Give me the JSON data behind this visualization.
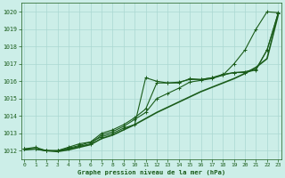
{
  "title": "Graphe pression niveau de la mer (hPa)",
  "hours": [
    0,
    1,
    2,
    3,
    4,
    5,
    6,
    7,
    8,
    9,
    10,
    11,
    12,
    13,
    14,
    15,
    16,
    17,
    18,
    19,
    20,
    21,
    22,
    23
  ],
  "series": [
    {
      "name": "line_top_curved",
      "values": [
        1012.1,
        1012.2,
        1012.0,
        1012.0,
        1012.2,
        1012.4,
        1012.5,
        1012.8,
        1013.0,
        1013.3,
        1013.5,
        1016.2,
        1016.0,
        1015.9,
        1015.9,
        1016.15,
        1016.1,
        1016.2,
        1016.35,
        1017.0,
        1017.8,
        1019.0,
        1020.0,
        1019.95
      ],
      "marker": true,
      "linewidth": 0.8
    },
    {
      "name": "line_mid1",
      "values": [
        1012.1,
        1012.1,
        1012.0,
        1012.0,
        1012.15,
        1012.3,
        1012.5,
        1013.0,
        1013.2,
        1013.5,
        1013.9,
        1014.4,
        1015.9,
        1015.9,
        1015.95,
        1016.1,
        1016.1,
        1016.2,
        1016.4,
        1016.5,
        1016.55,
        1016.7,
        1017.8,
        1019.9
      ],
      "marker": true,
      "linewidth": 0.8
    },
    {
      "name": "line_mid2",
      "values": [
        1012.1,
        1012.1,
        1012.0,
        1012.0,
        1012.1,
        1012.25,
        1012.4,
        1012.9,
        1013.1,
        1013.4,
        1013.8,
        1014.2,
        1015.0,
        1015.3,
        1015.6,
        1015.95,
        1016.05,
        1016.15,
        1016.35,
        1016.5,
        1016.5,
        1016.65,
        1017.8,
        1019.9
      ],
      "marker": true,
      "linewidth": 0.8
    },
    {
      "name": "line_smooth_low",
      "values": [
        1012.05,
        1012.1,
        1012.0,
        1011.95,
        1012.05,
        1012.2,
        1012.35,
        1012.7,
        1012.9,
        1013.2,
        1013.5,
        1013.85,
        1014.2,
        1014.5,
        1014.8,
        1015.1,
        1015.4,
        1015.65,
        1015.9,
        1016.15,
        1016.45,
        1016.8,
        1017.3,
        1019.8
      ],
      "marker": false,
      "linewidth": 1.2
    }
  ],
  "ylim": [
    1011.5,
    1020.5
  ],
  "yticks": [
    1012,
    1013,
    1014,
    1015,
    1016,
    1017,
    1018,
    1019,
    1020
  ],
  "bg_color": "#cceee8",
  "grid_color": "#aad8d2",
  "line_color": "#1a5c1a",
  "text_color": "#1a5c1a",
  "marker_size": 2.5,
  "marker_style": "+"
}
